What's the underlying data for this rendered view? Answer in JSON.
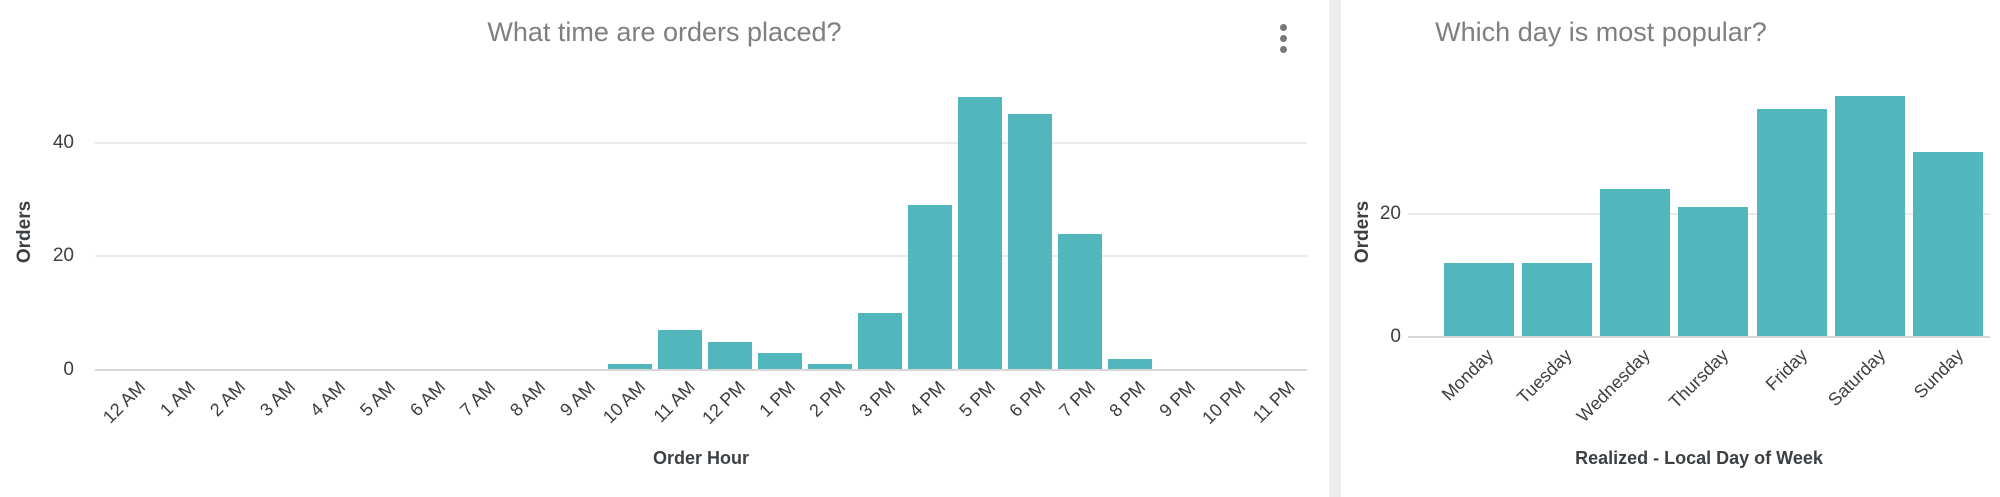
{
  "cards": [
    {
      "title": "What time are orders placed?",
      "y_axis_title": "Orders",
      "x_axis_title": "Order Hour",
      "menu_icon": "kebab-menu"
    },
    {
      "title": "Which day is most popular?",
      "y_axis_title": "Orders",
      "x_axis_title": "Realized - Local Day of Week"
    }
  ],
  "chart_data": [
    {
      "type": "bar",
      "title": "What time are orders placed?",
      "xlabel": "Order Hour",
      "ylabel": "Orders",
      "categories": [
        "12 AM",
        "1 AM",
        "2 AM",
        "3 AM",
        "4 AM",
        "5 AM",
        "6 AM",
        "7 AM",
        "8 AM",
        "9 AM",
        "10 AM",
        "11 AM",
        "12 PM",
        "1 PM",
        "2 PM",
        "3 PM",
        "4 PM",
        "5 PM",
        "6 PM",
        "7 PM",
        "8 PM",
        "9 PM",
        "10 PM",
        "11 PM"
      ],
      "values": [
        0,
        0,
        0,
        0,
        0,
        0,
        0,
        0,
        0,
        0,
        1,
        7,
        5,
        3,
        1,
        10,
        29,
        48,
        45,
        24,
        2,
        0,
        0,
        0
      ],
      "y_ticks": [
        0,
        20,
        40
      ],
      "ylim": [
        0,
        50
      ],
      "grid": true,
      "legend": false,
      "bar_color": "#52b7bd"
    },
    {
      "type": "bar",
      "title": "Which day is most popular?",
      "xlabel": "Realized - Local Day of Week",
      "ylabel": "Orders",
      "categories": [
        "Monday",
        "Tuesday",
        "Wednesday",
        "Thursday",
        "Friday",
        "Saturday",
        "Sunday"
      ],
      "values": [
        12,
        12,
        24,
        21,
        37,
        39,
        30
      ],
      "y_ticks": [
        0,
        20
      ],
      "ylim": [
        0,
        42
      ],
      "grid": true,
      "legend": false,
      "bar_color": "#52b7bd"
    }
  ],
  "colors": {
    "bar": "#52b7bd",
    "title_text": "#7f7f7f",
    "axis_text": "#3c4043",
    "gridline": "#ebebeb",
    "card_background": "#ffffff",
    "page_gap": "#ededed"
  }
}
